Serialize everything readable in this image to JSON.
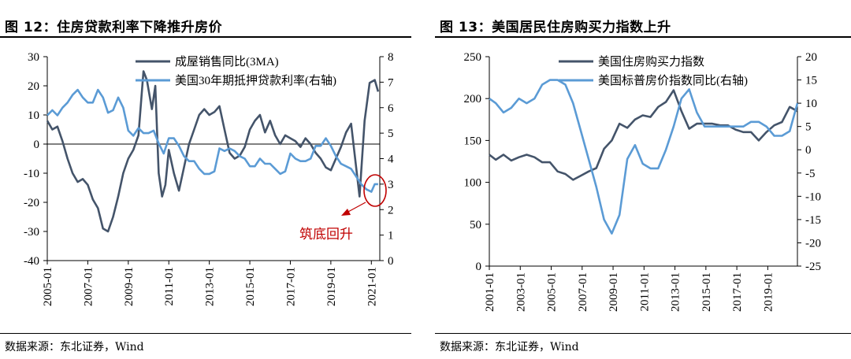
{
  "panels": [
    {
      "title": "图 12：住房贷款利率下降推升房价",
      "source": "数据来源：东北证券，Wind",
      "annotation": "筑底回升"
    },
    {
      "title": "图 13：美国居民住房购买力指数上升",
      "source": "数据来源：东北证券，Wind"
    }
  ],
  "colors": {
    "dark_series": "#44546a",
    "light_series": "#5b9bd5",
    "annotation": "#c00000"
  },
  "chart_data": [
    {
      "type": "line",
      "x_ticks": [
        "2005-01",
        "2007-01",
        "2009-01",
        "2011-01",
        "2013-01",
        "2015-01",
        "2017-01",
        "2019-01",
        "2021-01"
      ],
      "xlim": [
        "2005-01",
        "2021-06"
      ],
      "y_left": {
        "lim": [
          -40,
          30
        ],
        "ticks": [
          -40,
          -30,
          -20,
          -10,
          0,
          10,
          20,
          30
        ]
      },
      "y_right": {
        "lim": [
          0,
          8
        ],
        "ticks": [
          0,
          1,
          2,
          3,
          4,
          5,
          6,
          7,
          8
        ]
      },
      "legend_position": "top-right",
      "series": [
        {
          "name": "成屋销售同比(3MA)",
          "axis": "left",
          "color": "#44546a",
          "points": [
            [
              "2005-01",
              8
            ],
            [
              "2005-04",
              5
            ],
            [
              "2005-07",
              6
            ],
            [
              "2005-10",
              1
            ],
            [
              "2006-01",
              -5
            ],
            [
              "2006-04",
              -10
            ],
            [
              "2006-07",
              -13
            ],
            [
              "2006-10",
              -12
            ],
            [
              "2007-01",
              -14
            ],
            [
              "2007-04",
              -19
            ],
            [
              "2007-07",
              -22
            ],
            [
              "2007-10",
              -29
            ],
            [
              "2008-01",
              -30
            ],
            [
              "2008-04",
              -25
            ],
            [
              "2008-07",
              -18
            ],
            [
              "2008-10",
              -10
            ],
            [
              "2009-01",
              -5
            ],
            [
              "2009-04",
              -2
            ],
            [
              "2009-07",
              3
            ],
            [
              "2009-10",
              25
            ],
            [
              "2009-12",
              22
            ],
            [
              "2010-03",
              12
            ],
            [
              "2010-05",
              20
            ],
            [
              "2010-07",
              -10
            ],
            [
              "2010-09",
              -18
            ],
            [
              "2010-11",
              -14
            ],
            [
              "2011-01",
              -2
            ],
            [
              "2011-04",
              -10
            ],
            [
              "2011-07",
              -16
            ],
            [
              "2011-10",
              -8
            ],
            [
              "2012-01",
              0
            ],
            [
              "2012-04",
              5
            ],
            [
              "2012-07",
              10
            ],
            [
              "2012-10",
              12
            ],
            [
              "2013-01",
              10
            ],
            [
              "2013-04",
              11
            ],
            [
              "2013-07",
              13
            ],
            [
              "2013-10",
              5
            ],
            [
              "2014-01",
              -3
            ],
            [
              "2014-04",
              -5
            ],
            [
              "2014-07",
              -4
            ],
            [
              "2014-10",
              -1
            ],
            [
              "2015-01",
              5
            ],
            [
              "2015-04",
              8
            ],
            [
              "2015-07",
              10
            ],
            [
              "2015-10",
              4
            ],
            [
              "2016-01",
              8
            ],
            [
              "2016-04",
              3
            ],
            [
              "2016-07",
              0
            ],
            [
              "2016-10",
              3
            ],
            [
              "2017-01",
              2
            ],
            [
              "2017-04",
              1
            ],
            [
              "2017-07",
              -1
            ],
            [
              "2017-10",
              2
            ],
            [
              "2018-01",
              0
            ],
            [
              "2018-04",
              -3
            ],
            [
              "2018-07",
              -5
            ],
            [
              "2018-10",
              -8
            ],
            [
              "2019-01",
              -9
            ],
            [
              "2019-04",
              -5
            ],
            [
              "2019-07",
              -1
            ],
            [
              "2019-10",
              4
            ],
            [
              "2020-01",
              7
            ],
            [
              "2020-04",
              -8
            ],
            [
              "2020-06",
              -18
            ],
            [
              "2020-09",
              8
            ],
            [
              "2020-12",
              21
            ],
            [
              "2021-03",
              22
            ],
            [
              "2021-05",
              18
            ]
          ]
        },
        {
          "name": "美国30年期抵押贷款利率(右轴)",
          "axis": "right",
          "color": "#5b9bd5",
          "points": [
            [
              "2005-01",
              5.7
            ],
            [
              "2005-04",
              5.9
            ],
            [
              "2005-07",
              5.7
            ],
            [
              "2005-10",
              6.0
            ],
            [
              "2006-01",
              6.2
            ],
            [
              "2006-04",
              6.5
            ],
            [
              "2006-07",
              6.7
            ],
            [
              "2006-10",
              6.4
            ],
            [
              "2007-01",
              6.2
            ],
            [
              "2007-04",
              6.2
            ],
            [
              "2007-07",
              6.7
            ],
            [
              "2007-10",
              6.4
            ],
            [
              "2008-01",
              5.8
            ],
            [
              "2008-04",
              5.9
            ],
            [
              "2008-07",
              6.4
            ],
            [
              "2008-10",
              6.0
            ],
            [
              "2009-01",
              5.1
            ],
            [
              "2009-04",
              4.9
            ],
            [
              "2009-07",
              5.2
            ],
            [
              "2009-10",
              5.0
            ],
            [
              "2010-01",
              5.0
            ],
            [
              "2010-04",
              5.1
            ],
            [
              "2010-07",
              4.6
            ],
            [
              "2010-10",
              4.2
            ],
            [
              "2011-01",
              4.8
            ],
            [
              "2011-04",
              4.8
            ],
            [
              "2011-07",
              4.5
            ],
            [
              "2011-10",
              4.1
            ],
            [
              "2012-01",
              3.9
            ],
            [
              "2012-04",
              3.9
            ],
            [
              "2012-07",
              3.6
            ],
            [
              "2012-10",
              3.4
            ],
            [
              "2013-01",
              3.4
            ],
            [
              "2013-04",
              3.5
            ],
            [
              "2013-07",
              4.4
            ],
            [
              "2013-10",
              4.3
            ],
            [
              "2014-01",
              4.4
            ],
            [
              "2014-04",
              4.3
            ],
            [
              "2014-07",
              4.1
            ],
            [
              "2014-10",
              4.0
            ],
            [
              "2015-01",
              3.7
            ],
            [
              "2015-04",
              3.7
            ],
            [
              "2015-07",
              4.0
            ],
            [
              "2015-10",
              3.8
            ],
            [
              "2016-01",
              3.8
            ],
            [
              "2016-04",
              3.6
            ],
            [
              "2016-07",
              3.4
            ],
            [
              "2016-10",
              3.5
            ],
            [
              "2017-01",
              4.2
            ],
            [
              "2017-04",
              4.0
            ],
            [
              "2017-07",
              3.9
            ],
            [
              "2017-10",
              3.9
            ],
            [
              "2018-01",
              4.0
            ],
            [
              "2018-04",
              4.5
            ],
            [
              "2018-07",
              4.5
            ],
            [
              "2018-10",
              4.8
            ],
            [
              "2019-01",
              4.5
            ],
            [
              "2019-04",
              4.1
            ],
            [
              "2019-07",
              3.8
            ],
            [
              "2019-10",
              3.7
            ],
            [
              "2020-01",
              3.6
            ],
            [
              "2020-04",
              3.3
            ],
            [
              "2020-07",
              3.0
            ],
            [
              "2020-10",
              2.8
            ],
            [
              "2021-01",
              2.7
            ],
            [
              "2021-03",
              3.0
            ],
            [
              "2021-05",
              3.0
            ]
          ]
        }
      ]
    },
    {
      "type": "line",
      "x_ticks": [
        "2001-01",
        "2003-01",
        "2005-01",
        "2007-01",
        "2009-01",
        "2011-01",
        "2013-01",
        "2015-01",
        "2017-01",
        "2019-01"
      ],
      "xlim": [
        "2001-01",
        "2020-12"
      ],
      "y_left": {
        "lim": [
          0,
          250
        ],
        "ticks": [
          0,
          50,
          100,
          150,
          200,
          250
        ]
      },
      "y_right": {
        "lim": [
          -25,
          20
        ],
        "ticks": [
          -25,
          -20,
          -15,
          -10,
          -5,
          0,
          5,
          10,
          15,
          20
        ]
      },
      "legend_position": "top-right",
      "series": [
        {
          "name": "美国住房购买力指数",
          "axis": "left",
          "color": "#44546a",
          "points": [
            [
              "2001-01",
              133
            ],
            [
              "2001-06",
              127
            ],
            [
              "2001-12",
              133
            ],
            [
              "2002-06",
              126
            ],
            [
              "2002-12",
              130
            ],
            [
              "2003-06",
              133
            ],
            [
              "2003-12",
              130
            ],
            [
              "2004-06",
              124
            ],
            [
              "2004-12",
              124
            ],
            [
              "2005-06",
              113
            ],
            [
              "2005-12",
              110
            ],
            [
              "2006-06",
              103
            ],
            [
              "2006-12",
              108
            ],
            [
              "2007-06",
              113
            ],
            [
              "2007-12",
              117
            ],
            [
              "2008-06",
              140
            ],
            [
              "2008-12",
              150
            ],
            [
              "2009-06",
              170
            ],
            [
              "2009-12",
              165
            ],
            [
              "2010-06",
              175
            ],
            [
              "2010-12",
              180
            ],
            [
              "2011-06",
              178
            ],
            [
              "2011-12",
              190
            ],
            [
              "2012-06",
              196
            ],
            [
              "2012-12",
              210
            ],
            [
              "2013-06",
              185
            ],
            [
              "2013-12",
              164
            ],
            [
              "2014-06",
              170
            ],
            [
              "2014-12",
              170
            ],
            [
              "2015-06",
              170
            ],
            [
              "2015-12",
              168
            ],
            [
              "2016-06",
              168
            ],
            [
              "2016-12",
              163
            ],
            [
              "2017-06",
              160
            ],
            [
              "2017-12",
              160
            ],
            [
              "2018-06",
              150
            ],
            [
              "2018-12",
              160
            ],
            [
              "2019-06",
              168
            ],
            [
              "2019-12",
              172
            ],
            [
              "2020-06",
              190
            ],
            [
              "2020-12",
              185
            ]
          ]
        },
        {
          "name": "美国标普房价指数同比(右轴)",
          "axis": "right",
          "color": "#5b9bd5",
          "points": [
            [
              "2001-01",
              11
            ],
            [
              "2001-06",
              10
            ],
            [
              "2001-12",
              8
            ],
            [
              "2002-06",
              9
            ],
            [
              "2002-12",
              11
            ],
            [
              "2003-06",
              10
            ],
            [
              "2003-12",
              11
            ],
            [
              "2004-06",
              14
            ],
            [
              "2004-12",
              15
            ],
            [
              "2005-06",
              15
            ],
            [
              "2005-12",
              14
            ],
            [
              "2006-06",
              10
            ],
            [
              "2006-12",
              4
            ],
            [
              "2007-06",
              -2
            ],
            [
              "2007-12",
              -8
            ],
            [
              "2008-06",
              -15
            ],
            [
              "2008-12",
              -18
            ],
            [
              "2009-06",
              -14
            ],
            [
              "2009-12",
              -2
            ],
            [
              "2010-06",
              1
            ],
            [
              "2010-12",
              -3
            ],
            [
              "2011-06",
              -4
            ],
            [
              "2011-12",
              -4
            ],
            [
              "2012-06",
              0
            ],
            [
              "2012-12",
              5
            ],
            [
              "2013-06",
              11
            ],
            [
              "2013-12",
              13
            ],
            [
              "2014-06",
              8
            ],
            [
              "2014-12",
              5
            ],
            [
              "2015-06",
              5
            ],
            [
              "2015-12",
              5
            ],
            [
              "2016-06",
              5
            ],
            [
              "2016-12",
              5
            ],
            [
              "2017-06",
              5
            ],
            [
              "2017-12",
              6
            ],
            [
              "2018-06",
              6
            ],
            [
              "2018-12",
              5
            ],
            [
              "2019-06",
              3
            ],
            [
              "2019-12",
              3
            ],
            [
              "2020-06",
              4
            ],
            [
              "2020-12",
              10
            ]
          ]
        }
      ]
    }
  ]
}
